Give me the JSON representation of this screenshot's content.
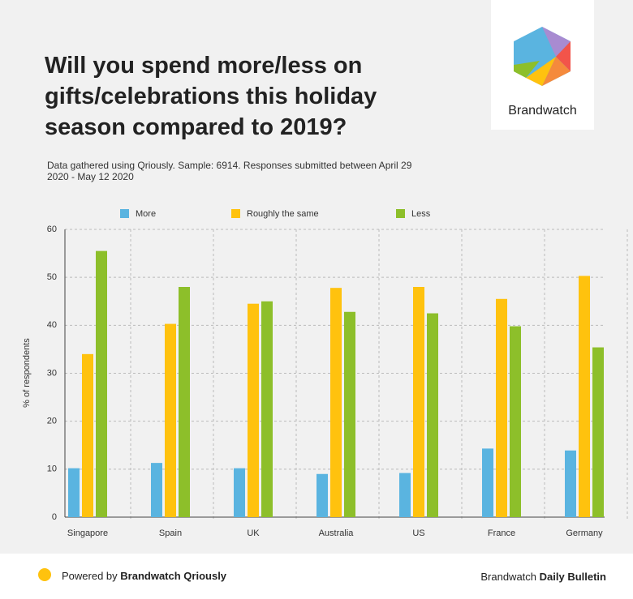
{
  "chart_data": {
    "type": "bar",
    "title": "Will you spend more/less on gifts/celebrations this holiday season compared to 2019?",
    "subtitle": "Data gathered using Qriously. Sample: 6914. Responses submitted between April 29 2020 - May 12 2020",
    "y_label": "% of respondents",
    "categories": [
      "Singapore",
      "Spain",
      "UK",
      "Australia",
      "US",
      "France",
      "Germany"
    ],
    "series": [
      {
        "name": "More",
        "color": "#5ab4e0",
        "values": [
          10.2,
          11.3,
          10.2,
          9,
          9.2,
          14.3,
          13.9
        ]
      },
      {
        "name": "Roughly the same",
        "color": "#ffc20e",
        "values": [
          34,
          40.3,
          44.5,
          47.8,
          48,
          45.5,
          50.3
        ]
      },
      {
        "name": "Less",
        "color": "#8dbf2a",
        "values": [
          55.5,
          48,
          45,
          42.8,
          42.5,
          39.8,
          35.4
        ]
      }
    ],
    "ylim": [
      0,
      60
    ],
    "yticks": [
      0,
      10,
      20,
      30,
      40,
      50,
      60
    ],
    "grid": true,
    "legend": "top"
  },
  "logo": {
    "text": "Brandwatch"
  },
  "footer": {
    "left_prefix": "Powered by",
    "left_brand": "Brandwatch Qriously",
    "right_prefix": "Brandwatch",
    "right_brand": "Daily Bulletin"
  }
}
